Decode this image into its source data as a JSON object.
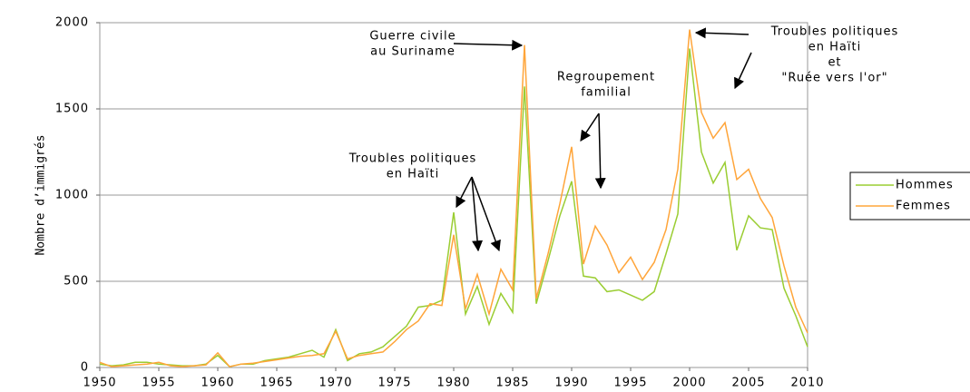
{
  "chart_data": {
    "type": "line",
    "y_label": "Nombre d’immigrés",
    "x": [
      1950,
      1951,
      1952,
      1953,
      1954,
      1955,
      1956,
      1957,
      1958,
      1959,
      1960,
      1961,
      1962,
      1963,
      1964,
      1965,
      1966,
      1967,
      1968,
      1969,
      1970,
      1971,
      1972,
      1973,
      1974,
      1975,
      1976,
      1977,
      1978,
      1979,
      1980,
      1981,
      1982,
      1983,
      1984,
      1985,
      1986,
      1987,
      1988,
      1989,
      1990,
      1991,
      1992,
      1993,
      1994,
      1995,
      1996,
      1997,
      1998,
      1999,
      2000,
      2001,
      2002,
      2003,
      2004,
      2005,
      2006,
      2007,
      2008,
      2009,
      2010
    ],
    "series": [
      {
        "name": "Hommes",
        "color": "#9acd32",
        "values": [
          20,
          10,
          15,
          30,
          30,
          20,
          15,
          10,
          10,
          20,
          70,
          5,
          20,
          20,
          40,
          50,
          60,
          80,
          100,
          60,
          220,
          40,
          80,
          90,
          120,
          180,
          240,
          350,
          360,
          390,
          900,
          310,
          470,
          250,
          430,
          320,
          1630,
          370,
          620,
          880,
          1080,
          530,
          520,
          440,
          450,
          420,
          390,
          440,
          660,
          890,
          1850,
          1250,
          1070,
          1190,
          680,
          880,
          810,
          800,
          460,
          300,
          120
        ]
      },
      {
        "name": "Femmes",
        "color": "#ffa53a",
        "values": [
          30,
          5,
          10,
          15,
          20,
          30,
          10,
          5,
          10,
          15,
          85,
          5,
          20,
          25,
          35,
          45,
          55,
          65,
          70,
          80,
          210,
          50,
          70,
          80,
          90,
          150,
          220,
          270,
          370,
          360,
          770,
          340,
          540,
          310,
          570,
          450,
          1870,
          400,
          660,
          950,
          1280,
          600,
          820,
          710,
          550,
          640,
          510,
          610,
          800,
          1150,
          1960,
          1480,
          1330,
          1420,
          1090,
          1150,
          980,
          870,
          590,
          350,
          200
        ]
      }
    ],
    "xlim": [
      1950,
      2010
    ],
    "xticks": [
      1950,
      1955,
      1960,
      1965,
      1970,
      1975,
      1980,
      1985,
      1990,
      1995,
      2000,
      2005,
      2010
    ],
    "ylim": [
      0,
      2000
    ],
    "yticks": [
      0,
      500,
      1000,
      1500,
      2000
    ],
    "grid": true,
    "legend": "right",
    "annotations": [
      {
        "lines": [
          "Guerre civile",
          "au Suriname"
        ]
      },
      {
        "lines": [
          "Regroupement",
          "familial"
        ]
      },
      {
        "lines": [
          "Troubles politiques",
          "en Haïti"
        ]
      },
      {
        "lines": [
          "Troubles politiques",
          "en Haïti",
          "et",
          "\"Ruée vers l'or\""
        ]
      }
    ]
  }
}
